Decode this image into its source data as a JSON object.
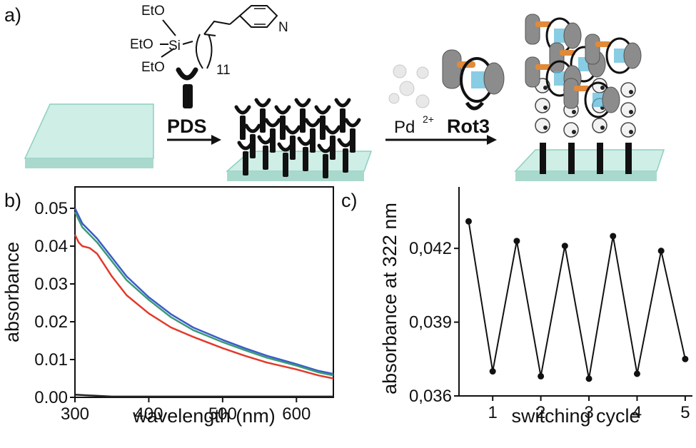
{
  "panel_labels": {
    "a": "a)",
    "b": "b)",
    "c": "c)"
  },
  "scheme": {
    "molecule": {
      "eto_1": "EtO",
      "eto_2": "EtO",
      "eto_3": "EtO",
      "si": "Si",
      "n": "N",
      "subscript": "11"
    },
    "step1_label": "PDS",
    "step2_metal": "Pd",
    "step2_charge": "2+",
    "step2_label": "Rot3",
    "colors": {
      "glass": "#bfe6dd",
      "rotor_grey": "#8c8c8c",
      "orange": "#e08a3a",
      "stripe": "#55b8d8"
    }
  },
  "chart_data": [
    {
      "id": "b",
      "type": "line",
      "xlabel": "wavelength (nm)",
      "ylabel": "absorbance",
      "xlim": [
        300,
        650
      ],
      "ylim": [
        0,
        0.05
      ],
      "xticks": [
        300,
        400,
        500,
        600
      ],
      "yticks": [
        0.0,
        0.01,
        0.02,
        0.03,
        0.04,
        0.05
      ],
      "ytick_labels": [
        "0.00",
        "0.01",
        "0.02",
        "0.03",
        "0.04",
        "0.05"
      ],
      "series": [
        {
          "color": "#3b5bc9",
          "x": [
            300,
            310,
            330,
            350,
            370,
            400,
            430,
            460,
            500,
            530,
            560,
            600,
            630,
            650
          ],
          "y": [
            0.05,
            0.046,
            0.042,
            0.037,
            0.032,
            0.0265,
            0.022,
            0.0185,
            0.0152,
            0.013,
            0.011,
            0.0088,
            0.007,
            0.0062
          ]
        },
        {
          "color": "#3a9a78",
          "x": [
            300,
            310,
            330,
            350,
            370,
            400,
            430,
            460,
            500,
            530,
            560,
            600,
            630,
            650
          ],
          "y": [
            0.049,
            0.045,
            0.041,
            0.036,
            0.031,
            0.0258,
            0.0212,
            0.0178,
            0.0146,
            0.0125,
            0.0105,
            0.0084,
            0.0066,
            0.0058
          ]
        },
        {
          "color": "#e23a2a",
          "x": [
            300,
            305,
            310,
            320,
            330,
            350,
            370,
            400,
            430,
            460,
            500,
            530,
            560,
            600,
            630,
            650
          ],
          "y": [
            0.043,
            0.041,
            0.04,
            0.0395,
            0.038,
            0.032,
            0.027,
            0.0222,
            0.0185,
            0.016,
            0.013,
            0.011,
            0.0092,
            0.0074,
            0.0058,
            0.005
          ]
        },
        {
          "color": "#222222",
          "x": [
            300,
            350,
            400,
            450,
            500,
            550,
            600,
            650
          ],
          "y": [
            0.0007,
            0.0002,
            0.0002,
            0.0002,
            0.0002,
            0.0002,
            0.0002,
            0.0002
          ]
        }
      ]
    },
    {
      "id": "c",
      "type": "line",
      "xlabel": "switching cycle",
      "ylabel": "absorbance at 322 nm",
      "xlim": [
        0.3,
        5.15
      ],
      "ylim": [
        0.036,
        0.0445
      ],
      "xticks": [
        1,
        2,
        3,
        4,
        5
      ],
      "yticks": [
        0.036,
        0.039,
        0.042
      ],
      "ytick_labels": [
        "0,036",
        "0,039",
        "0,042"
      ],
      "x": [
        0.5,
        1,
        1.5,
        2,
        2.5,
        3,
        3.5,
        4,
        4.5,
        5
      ],
      "values": [
        0.0431,
        0.037,
        0.0423,
        0.0368,
        0.0421,
        0.0367,
        0.0425,
        0.0369,
        0.0419,
        0.0375
      ]
    }
  ]
}
